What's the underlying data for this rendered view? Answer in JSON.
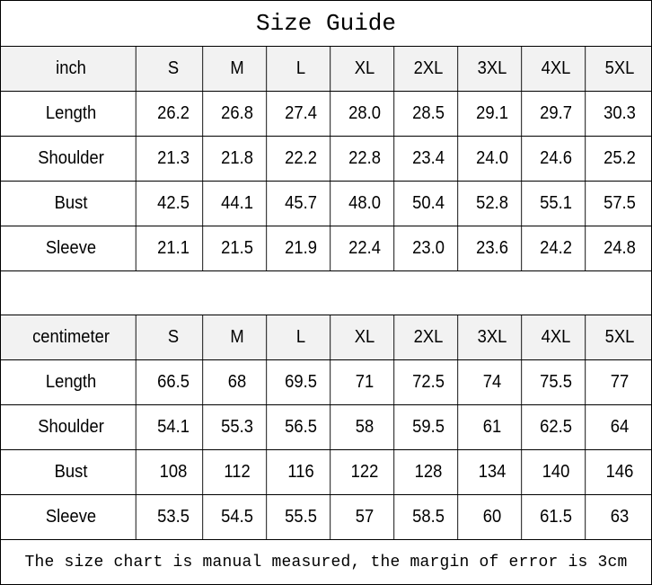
{
  "title": "Size Guide",
  "sizes": [
    "S",
    "M",
    "L",
    "XL",
    "2XL",
    "3XL",
    "4XL",
    "5XL"
  ],
  "tables": [
    {
      "unit": "inch",
      "rows": [
        {
          "label": "Length",
          "values": [
            "26.2",
            "26.8",
            "27.4",
            "28.0",
            "28.5",
            "29.1",
            "29.7",
            "30.3"
          ]
        },
        {
          "label": "Shoulder",
          "values": [
            "21.3",
            "21.8",
            "22.2",
            "22.8",
            "23.4",
            "24.0",
            "24.6",
            "25.2"
          ]
        },
        {
          "label": "Bust",
          "values": [
            "42.5",
            "44.1",
            "45.7",
            "48.0",
            "50.4",
            "52.8",
            "55.1",
            "57.5"
          ]
        },
        {
          "label": "Sleeve",
          "values": [
            "21.1",
            "21.5",
            "21.9",
            "22.4",
            "23.0",
            "23.6",
            "24.2",
            "24.8"
          ]
        }
      ]
    },
    {
      "unit": "centimeter",
      "rows": [
        {
          "label": "Length",
          "values": [
            "66.5",
            "68",
            "69.5",
            "71",
            "72.5",
            "74",
            "75.5",
            "77"
          ]
        },
        {
          "label": "Shoulder",
          "values": [
            "54.1",
            "55.3",
            "56.5",
            "58",
            "59.5",
            "61",
            "62.5",
            "64"
          ]
        },
        {
          "label": "Bust",
          "values": [
            "108",
            "112",
            "116",
            "122",
            "128",
            "134",
            "140",
            "146"
          ]
        },
        {
          "label": "Sleeve",
          "values": [
            "53.5",
            "54.5",
            "55.5",
            "57",
            "58.5",
            "60",
            "61.5",
            "63"
          ]
        }
      ]
    }
  ],
  "footer": "The size chart is manual measured, the margin of error is 3cm",
  "colors": {
    "header_bg": "#f2f2f2",
    "border": "#000000"
  }
}
